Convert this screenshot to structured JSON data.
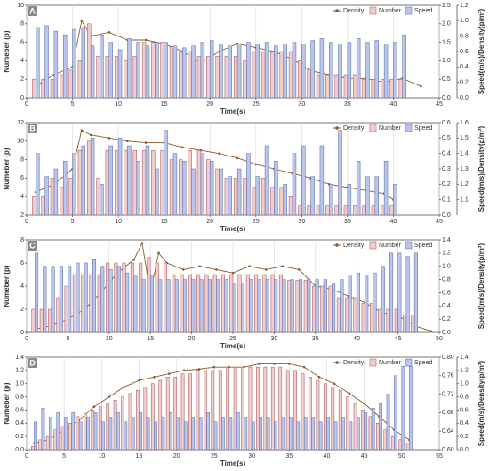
{
  "chart_data": [
    {
      "type": "combo",
      "panel": "A",
      "x_label": "Time(s)",
      "y_label": "Numeber (p)",
      "y2_label": "Speed(m/s)/Density(p/m²)",
      "legend": "upper right",
      "grid": true,
      "xlim": [
        0,
        45
      ],
      "xticks": [
        0,
        5,
        10,
        15,
        20,
        25,
        30,
        35,
        40,
        45
      ],
      "ylim": [
        0,
        10
      ],
      "yticks": [
        0,
        2,
        4,
        6,
        8,
        10
      ],
      "y2lim": [
        0,
        2.5
      ],
      "y2ticks": [
        {
          "value": 0,
          "label": "0.0"
        },
        0.5,
        {
          "value": 1,
          "label": "1.0"
        },
        1.5,
        {
          "value": 2,
          "label": "2.0"
        },
        2.5
      ],
      "y3lim": [
        0,
        1.2
      ],
      "y3ticks": [
        {
          "value": 0,
          "label": "0.0"
        },
        0.2,
        0.4,
        0.6,
        0.8,
        {
          "value": 1,
          "label": "1.0"
        },
        1.2
      ],
      "x": [
        1,
        2,
        3,
        4,
        5,
        6,
        7,
        8,
        9,
        10,
        11,
        12,
        13,
        14,
        15,
        16,
        17,
        18,
        19,
        20,
        21,
        22,
        23,
        24,
        25,
        26,
        27,
        28,
        29,
        30,
        31,
        32,
        33,
        34,
        35,
        36,
        37,
        38,
        39,
        40,
        41
      ],
      "series": [
        {
          "name": "Density",
          "type": "line",
          "axis": "y3",
          "color": "#8b5a2b",
          "x": [
            1,
            3,
            5,
            6,
            7,
            9,
            11,
            13,
            15,
            17,
            19,
            21,
            23,
            25,
            27,
            29,
            31,
            33,
            35,
            37,
            39,
            41,
            43
          ],
          "values": [
            0.15,
            0.3,
            0.4,
            1.0,
            0.8,
            0.85,
            0.75,
            0.75,
            0.7,
            0.6,
            0.45,
            0.6,
            0.7,
            0.65,
            0.6,
            0.5,
            0.35,
            0.3,
            0.25,
            0.25,
            0.2,
            0.25,
            0.15
          ]
        },
        {
          "name": "Number",
          "type": "bar",
          "axis": "y",
          "color": "#f3cccc",
          "values": [
            2,
            2,
            2,
            2.5,
            3,
            4,
            8,
            4.5,
            4.5,
            4.5,
            4,
            4.5,
            6,
            6,
            6,
            5.5,
            5,
            5,
            4.5,
            4.5,
            4.5,
            4.5,
            4.5,
            4,
            5,
            5,
            5,
            5,
            5,
            4,
            3,
            2.5,
            2.5,
            2.5,
            2.5,
            2.5,
            2,
            2,
            2,
            2,
            2
          ]
        },
        {
          "name": "Speed",
          "type": "bar",
          "axis": "y2",
          "color": "#b9c5ea",
          "values": [
            1.9,
            1.95,
            1.8,
            1.7,
            1.85,
            1.9,
            1.4,
            1.7,
            1.5,
            1.3,
            1.6,
            1.5,
            1.4,
            1.5,
            1.5,
            1.4,
            1.35,
            1.4,
            1.5,
            1.55,
            1.45,
            1.4,
            1.45,
            1.5,
            1.45,
            1.5,
            1.4,
            1.45,
            1.5,
            1.45,
            1.55,
            1.6,
            1.5,
            1.45,
            1.5,
            1.6,
            1.5,
            1.55,
            1.45,
            1.5,
            1.7
          ]
        }
      ]
    },
    {
      "type": "combo",
      "panel": "B",
      "x_label": "Time(s)",
      "y_label": "Numeber (p)",
      "y2_label": "Speed(m/s)/Density(p/m²)",
      "legend": "upper right",
      "grid": true,
      "xlim": [
        0,
        45
      ],
      "xticks": [
        0,
        5,
        10,
        15,
        20,
        25,
        30,
        35,
        40,
        45
      ],
      "ylim": [
        2,
        12
      ],
      "yticks": [
        2,
        4,
        6,
        8,
        10,
        12
      ],
      "y2lim": [
        0,
        0.6
      ],
      "y2ticks": [
        {
          "value": 0,
          "label": "0.0"
        },
        0.1,
        0.2,
        0.3,
        0.4,
        0.5,
        0.6
      ],
      "y3lim": [
        1.0,
        1.6
      ],
      "y3ticks": [
        1.1,
        1.2,
        1.3,
        1.4,
        1.5,
        1.6
      ],
      "x": [
        1,
        2,
        3,
        4,
        5,
        6,
        7,
        8,
        9,
        10,
        11,
        12,
        13,
        14,
        15,
        16,
        17,
        18,
        19,
        20,
        21,
        22,
        23,
        24,
        25,
        26,
        27,
        28,
        29,
        30,
        31,
        32,
        33,
        34,
        35,
        36,
        37,
        38,
        39,
        40
      ],
      "series": [
        {
          "name": "Density",
          "type": "line",
          "axis": "y3",
          "color": "#8b5a2b",
          "x": [
            1,
            3,
            5,
            6,
            7,
            9,
            11,
            13,
            15,
            17,
            19,
            21,
            23,
            25,
            27,
            29,
            31,
            33,
            35,
            37,
            39,
            40
          ],
          "values": [
            1.15,
            1.2,
            1.3,
            1.55,
            1.52,
            1.5,
            1.48,
            1.47,
            1.47,
            1.44,
            1.42,
            1.4,
            1.37,
            1.33,
            1.3,
            1.27,
            1.24,
            1.2,
            1.18,
            1.16,
            1.14,
            1.1
          ]
        },
        {
          "name": "Number",
          "type": "bar",
          "axis": "y",
          "color": "#f3cccc",
          "values": [
            4,
            4,
            6,
            5,
            6,
            9,
            10,
            6,
            9,
            9,
            9,
            9,
            9,
            9,
            9,
            8,
            8,
            9,
            9,
            8,
            7,
            6,
            6,
            6,
            5,
            6,
            5,
            5,
            4,
            3,
            3,
            3,
            3,
            3,
            3,
            3,
            3,
            3,
            3,
            3
          ]
        },
        {
          "name": "Speed",
          "type": "bar",
          "axis": "y2",
          "color": "#b9c5ea",
          "values": [
            0.4,
            0.25,
            0.3,
            0.35,
            0.4,
            0.45,
            0.5,
            0.2,
            0.45,
            0.5,
            0.45,
            0.35,
            0.45,
            0.3,
            0.55,
            0.4,
            0.35,
            0.3,
            0.4,
            0.35,
            0.3,
            0.25,
            0.3,
            0.4,
            0.25,
            0.45,
            0.35,
            0.2,
            0.4,
            0.45,
            0.25,
            0.45,
            0.2,
            0.55,
            0.2,
            0.35,
            0.25,
            0.25,
            0.35,
            0.2
          ]
        }
      ]
    },
    {
      "type": "combo",
      "panel": "C",
      "x_label": "Time(s)",
      "y_label": "Numeber (p)",
      "y2_label": "Speed(m/s)/Density(p/m²)",
      "legend": "upper right",
      "grid": true,
      "xlim": [
        0,
        50
      ],
      "xticks": [
        0,
        5,
        10,
        15,
        20,
        25,
        30,
        35,
        40,
        45,
        50
      ],
      "ylim": [
        0,
        8
      ],
      "yticks": [
        0,
        2,
        4,
        6,
        8
      ],
      "y2lim": [
        0,
        1.4
      ],
      "y2ticks": [
        {
          "value": 0,
          "label": "0.0"
        },
        0.2,
        0.4,
        0.6,
        0.8,
        {
          "value": 1,
          "label": "1.0"
        },
        1.2,
        1.4
      ],
      "x": [
        1,
        2,
        3,
        4,
        5,
        6,
        7,
        8,
        9,
        10,
        11,
        12,
        13,
        14,
        15,
        16,
        17,
        18,
        19,
        20,
        21,
        22,
        23,
        24,
        25,
        26,
        27,
        28,
        29,
        30,
        31,
        32,
        33,
        34,
        35,
        36,
        37,
        38,
        39,
        40,
        41,
        42,
        43,
        44,
        45,
        46,
        47
      ],
      "series": [
        {
          "name": "Density",
          "type": "line",
          "axis": "y2",
          "color": "#8b5a2b",
          "x": [
            1,
            3,
            5,
            7,
            9,
            11,
            13,
            14,
            15,
            16,
            17,
            19,
            21,
            23,
            25,
            27,
            29,
            31,
            33,
            35,
            37,
            39,
            41,
            43,
            45,
            47,
            49
          ],
          "values": [
            0.05,
            0.1,
            0.2,
            0.35,
            0.6,
            0.9,
            1.1,
            1.35,
            0.6,
            1.2,
            1.05,
            0.95,
            1.0,
            0.95,
            0.9,
            1.0,
            0.95,
            1.0,
            0.95,
            0.7,
            0.65,
            0.55,
            0.45,
            0.3,
            0.25,
            0.1,
            0.02
          ]
        },
        {
          "name": "Number",
          "type": "bar",
          "axis": "y",
          "color": "#f3cccc",
          "values": [
            2,
            2,
            2,
            3,
            4,
            5,
            5,
            5,
            5,
            6,
            6,
            6,
            6,
            6,
            6.5,
            6,
            6,
            5,
            5,
            5,
            5,
            5,
            5,
            5,
            5,
            5,
            5,
            5,
            5,
            5,
            5,
            4.5,
            4.5,
            4.5,
            4,
            4,
            4,
            3,
            3,
            3,
            2.5,
            2.5,
            2,
            2,
            2,
            1.5,
            1.5
          ]
        },
        {
          "name": "Speed",
          "type": "bar",
          "axis": "y2",
          "color": "#b9c5ea",
          "values": [
            1.2,
            1.0,
            1.0,
            1.0,
            1.0,
            1.05,
            1.05,
            1.1,
            1.0,
            0.95,
            1.0,
            0.9,
            0.85,
            0.8,
            0.85,
            0.8,
            0.8,
            0.8,
            0.8,
            0.8,
            0.8,
            0.8,
            0.8,
            0.8,
            0.75,
            0.75,
            0.8,
            0.8,
            0.8,
            0.8,
            0.8,
            0.8,
            0.8,
            0.8,
            0.8,
            0.8,
            0.75,
            0.8,
            0.85,
            0.9,
            0.85,
            0.9,
            1.0,
            1.2,
            1.2,
            1.15,
            1.2
          ]
        }
      ]
    },
    {
      "type": "combo",
      "panel": "D",
      "x_label": "Time(s)",
      "y_label": "Numeber (p)",
      "y2_label": "Speed(m/s)/Density(p/m²)",
      "legend": "upper right",
      "grid": true,
      "xlim": [
        0,
        55
      ],
      "xticks": [
        0,
        5,
        10,
        15,
        20,
        25,
        30,
        35,
        40,
        45,
        50,
        55
      ],
      "ylim": [
        0,
        1.4
      ],
      "yticks": [
        {
          "value": 0,
          "label": "0.0"
        },
        0.2,
        0.4,
        0.6,
        0.8,
        {
          "value": 1,
          "label": "1.0"
        },
        1.2,
        1.4
      ],
      "y2lim": [
        0.6,
        0.8
      ],
      "y2ticks": [
        {
          "value": 0.6,
          "label": "0.60"
        },
        0.64,
        0.68,
        0.72,
        0.76,
        {
          "value": 0.8,
          "label": "0.80"
        }
      ],
      "y3lim": [
        0,
        1.4
      ],
      "y3ticks": [
        {
          "value": 0,
          "label": "0.0"
        },
        0.2,
        0.4,
        0.6,
        0.8,
        {
          "value": 1,
          "label": "1.0"
        },
        1.2,
        1.4
      ],
      "x": [
        1,
        2,
        3,
        4,
        5,
        6,
        7,
        8,
        9,
        10,
        11,
        12,
        13,
        14,
        15,
        16,
        17,
        18,
        19,
        20,
        21,
        22,
        23,
        24,
        25,
        26,
        27,
        28,
        29,
        30,
        31,
        32,
        33,
        34,
        35,
        36,
        37,
        38,
        39,
        40,
        41,
        42,
        43,
        44,
        45,
        46,
        47,
        48,
        49,
        50,
        51
      ],
      "series": [
        {
          "name": "Density",
          "type": "line",
          "axis": "y3",
          "color": "#8b5a2b",
          "x": [
            1,
            3,
            5,
            7,
            9,
            11,
            13,
            15,
            17,
            19,
            21,
            23,
            25,
            27,
            29,
            31,
            33,
            35,
            37,
            39,
            41,
            43,
            45,
            47,
            49,
            51
          ],
          "values": [
            0.1,
            0.15,
            0.3,
            0.45,
            0.65,
            0.8,
            0.95,
            1.05,
            1.1,
            1.15,
            1.2,
            1.22,
            1.25,
            1.25,
            1.25,
            1.3,
            1.3,
            1.3,
            1.25,
            1.1,
            1.0,
            0.85,
            0.7,
            0.5,
            0.3,
            0.15
          ]
        },
        {
          "name": "Number",
          "type": "bar",
          "axis": "y",
          "color": "#f3cccc",
          "values": [
            0.05,
            0.15,
            0.2,
            0.3,
            0.35,
            0.4,
            0.5,
            0.55,
            0.6,
            0.65,
            0.7,
            0.75,
            0.8,
            0.85,
            0.9,
            0.95,
            1.0,
            1.05,
            1.1,
            1.1,
            1.15,
            1.15,
            1.2,
            1.2,
            1.2,
            1.2,
            1.25,
            1.25,
            1.25,
            1.25,
            1.25,
            1.25,
            1.25,
            1.25,
            1.2,
            1.2,
            1.15,
            1.1,
            1.05,
            1.0,
            0.95,
            0.9,
            0.8,
            0.7,
            0.6,
            0.5,
            0.4,
            0.3,
            0.2,
            0.15,
            0.1
          ]
        },
        {
          "name": "Speed",
          "type": "bar",
          "axis": "y2",
          "color": "#b9c5ea",
          "values": [
            0.66,
            0.69,
            0.67,
            0.68,
            0.67,
            0.68,
            0.66,
            0.67,
            0.68,
            0.66,
            0.67,
            0.68,
            0.66,
            0.67,
            0.68,
            0.67,
            0.66,
            0.67,
            0.68,
            0.67,
            0.66,
            0.67,
            0.67,
            0.68,
            0.66,
            0.67,
            0.67,
            0.68,
            0.67,
            0.66,
            0.67,
            0.67,
            0.66,
            0.67,
            0.67,
            0.66,
            0.67,
            0.67,
            0.66,
            0.67,
            0.66,
            0.67,
            0.66,
            0.67,
            0.68,
            0.69,
            0.7,
            0.72,
            0.76,
            0.78,
            0.78
          ]
        }
      ]
    }
  ]
}
